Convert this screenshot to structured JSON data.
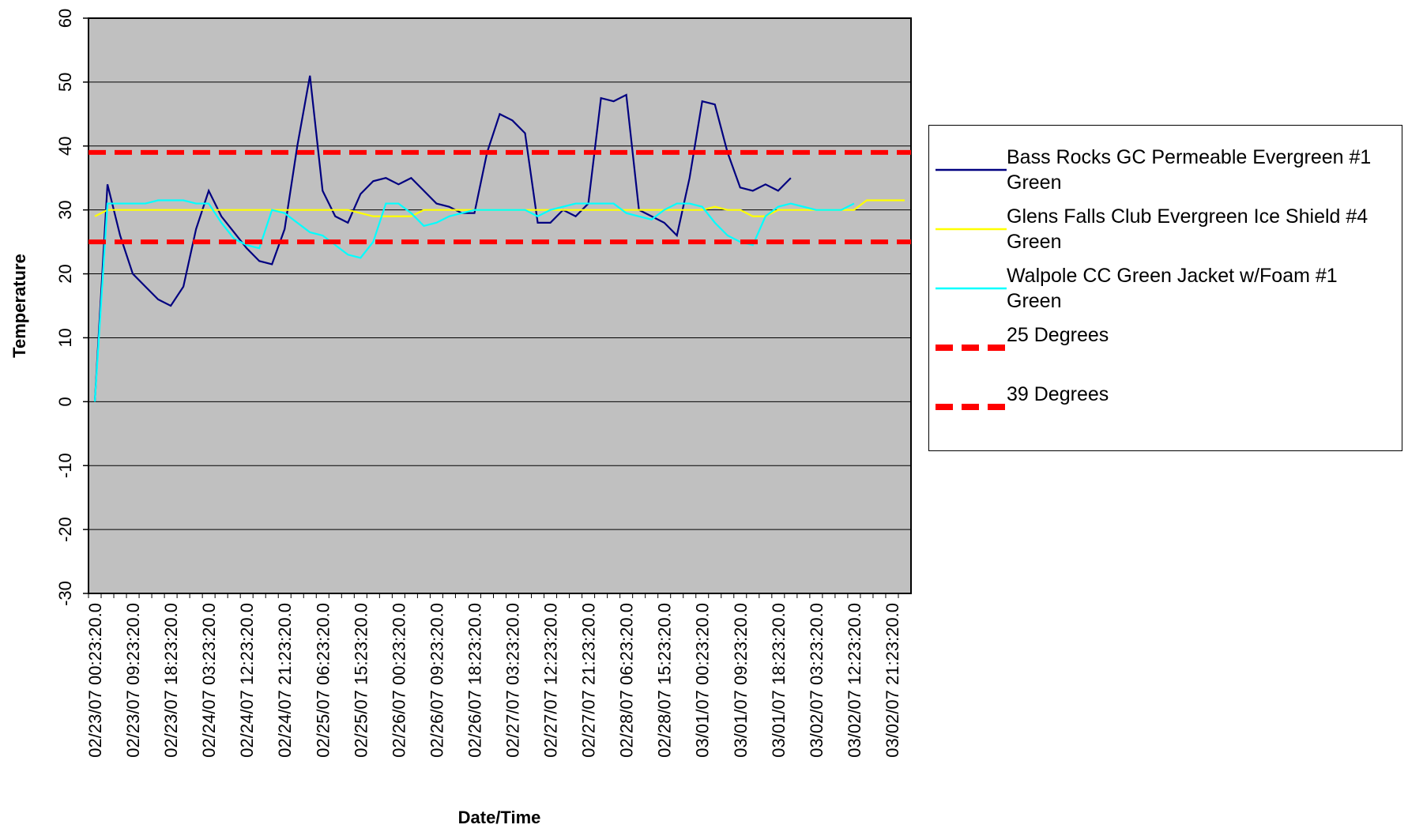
{
  "chart_data": {
    "type": "line",
    "x_label": "Date/Time",
    "y_label": "Temperature",
    "categories": [
      "02/23/07 00:23:20.0",
      null,
      null,
      "02/23/07 09:23:20.0",
      null,
      null,
      "02/23/07 18:23:20.0",
      null,
      null,
      "02/24/07 03:23:20.0",
      null,
      null,
      "02/24/07 12:23:20.0",
      null,
      null,
      "02/24/07 21:23:20.0",
      null,
      null,
      "02/25/07 06:23:20.0",
      null,
      null,
      "02/25/07 15:23:20.0",
      null,
      null,
      "02/26/07 00:23:20.0",
      null,
      null,
      "02/26/07 09:23:20.0",
      null,
      null,
      "02/26/07 18:23:20.0",
      null,
      null,
      "02/27/07 03:23:20.0",
      null,
      null,
      "02/27/07 12:23:20.0",
      null,
      null,
      "02/27/07 21:23:20.0",
      null,
      null,
      "02/28/07 06:23:20.0",
      null,
      null,
      "02/28/07 15:23:20.0",
      null,
      null,
      "03/01/07 00:23:20.0",
      null,
      null,
      "03/01/07 09:23:20.0",
      null,
      null,
      "03/01/07 18:23:20.0",
      null,
      null,
      "03/02/07 03:23:20.0",
      null,
      null,
      "03/02/07 12:23:20.0",
      null,
      null,
      "03/02/07 21:23:20.0",
      null
    ],
    "series": [
      {
        "name": "Bass Rocks GC Permeable Evergreen #1 Green",
        "color": "#000080",
        "values": [
          0,
          34,
          26,
          20,
          18,
          16,
          15,
          18,
          27,
          33,
          29,
          26.5,
          24,
          22,
          21.5,
          27,
          40,
          51,
          33,
          29,
          28,
          32.5,
          34.5,
          35,
          34,
          35,
          33,
          31,
          30.5,
          29.5,
          29.5,
          39,
          45,
          44,
          42,
          28,
          28,
          30,
          29,
          31,
          47.5,
          47,
          48,
          30,
          29,
          28,
          26,
          35,
          47,
          46.5,
          39,
          33.5,
          33,
          34,
          33,
          35,
          null,
          null,
          null,
          null,
          null,
          null,
          null,
          null,
          null
        ]
      },
      {
        "name": "Glens Falls Club Evergreen Ice Shield #4 Green",
        "color": "#ffff00",
        "values": [
          29,
          30,
          30,
          30,
          30,
          30,
          30,
          30,
          30,
          30,
          30,
          30,
          30,
          30,
          30,
          30,
          30,
          30,
          30,
          30,
          30,
          29.5,
          29,
          29,
          29,
          29,
          30,
          30,
          30,
          30,
          30,
          30,
          30,
          30,
          30,
          30,
          30,
          30,
          30,
          30,
          30,
          30,
          30,
          30,
          30,
          30,
          30,
          30,
          30,
          30.5,
          30,
          30,
          29,
          29,
          30,
          30,
          30,
          30,
          30,
          30,
          30,
          31.5,
          31.5,
          31.5,
          31.5
        ]
      },
      {
        "name": "Walpole CC Green Jacket w/Foam #1 Green",
        "color": "#00ffff",
        "values": [
          0,
          31,
          31,
          31,
          31,
          31.5,
          31.5,
          31.5,
          31,
          31,
          28,
          25.5,
          24.5,
          24,
          30,
          29.5,
          28,
          26.5,
          26,
          24.5,
          23,
          22.5,
          25,
          31,
          31,
          29.5,
          27.5,
          28,
          29,
          29.5,
          30,
          30,
          30,
          30,
          30,
          29,
          30,
          30.5,
          31,
          31,
          31,
          31,
          29.5,
          29,
          28.5,
          30,
          31,
          31,
          30.5,
          28,
          26,
          25,
          24.5,
          29,
          30.5,
          31,
          30.5,
          30,
          30,
          30,
          31,
          null,
          null,
          null,
          null
        ]
      }
    ],
    "reference_lines": [
      {
        "name": "25 Degrees",
        "value": 25,
        "color": "#ff0000"
      },
      {
        "name": "39 Degrees",
        "value": 39,
        "color": "#ff0000"
      }
    ],
    "ylim": [
      -30,
      60
    ],
    "yticks": [
      -30,
      -20,
      -10,
      0,
      10,
      20,
      30,
      40,
      50,
      60
    ],
    "grid": true,
    "plot_background": "#c0c0c0",
    "legend_position": "right"
  }
}
